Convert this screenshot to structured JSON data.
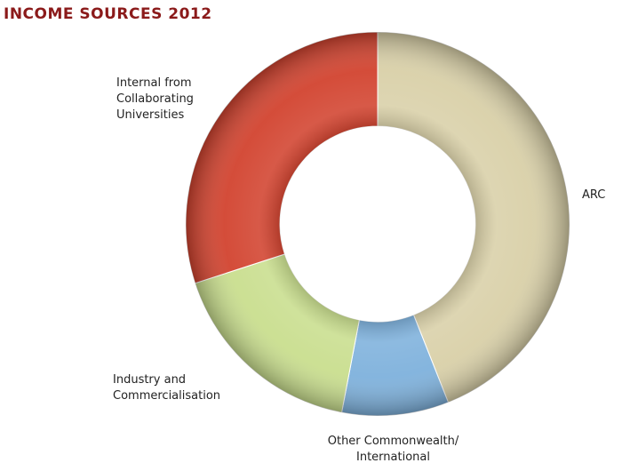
{
  "chart_data": {
    "type": "donut",
    "title": "INCOME SOURCES 2012",
    "categories": [
      "ARC",
      "Other Commonwealth/ International",
      "Industry and Commercialisation",
      "Internal from Collaborating Universities"
    ],
    "values": [
      44,
      9,
      17,
      30
    ],
    "colors": [
      "#d9d0a8",
      "#7eb1dc",
      "#c9de8e",
      "#d2432f"
    ]
  }
}
